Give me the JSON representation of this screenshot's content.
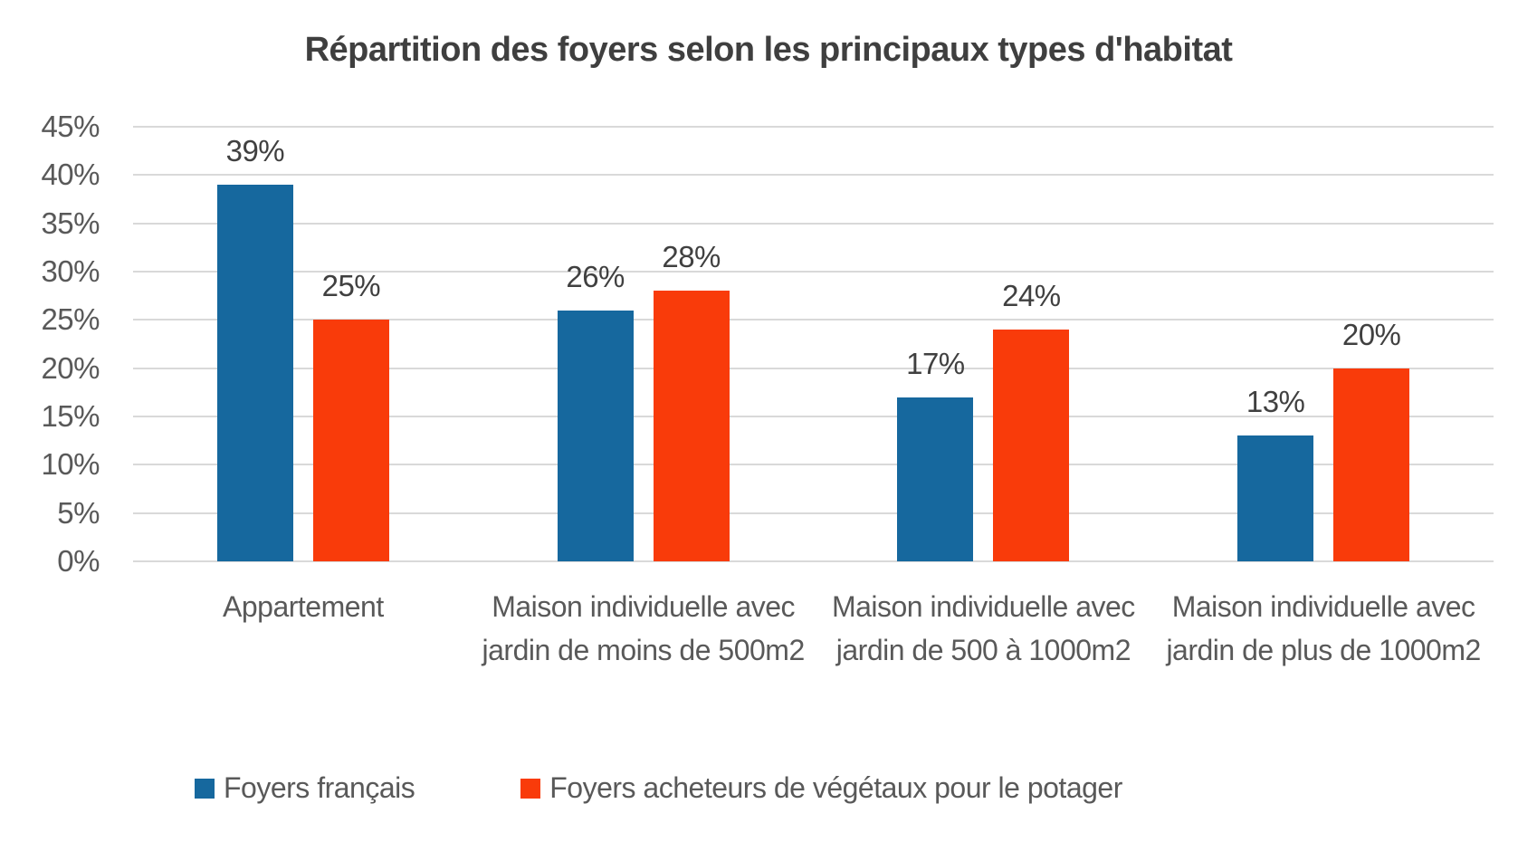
{
  "chart_data": {
    "type": "bar",
    "title": "Répartition des foyers selon les principaux types d'habitat",
    "categories": [
      "Appartement",
      "Maison individuelle avec jardin de moins de 500m2",
      "Maison individuelle avec jardin de 500 à 1000m2",
      "Maison individuelle avec jardin de plus de 1000m2"
    ],
    "series": [
      {
        "name": "Foyers français",
        "color": "#16689E",
        "values": [
          39,
          26,
          17,
          13
        ],
        "labels": [
          "39%",
          "26%",
          "17%",
          "13%"
        ]
      },
      {
        "name": "Foyers acheteurs de végétaux pour le potager",
        "color": "#F93B0A",
        "values": [
          25,
          28,
          24,
          20
        ],
        "labels": [
          "25%",
          "28%",
          "24%",
          "20%"
        ]
      }
    ],
    "y_axis": {
      "ticks": [
        "0%",
        "5%",
        "10%",
        "15%",
        "20%",
        "25%",
        "30%",
        "35%",
        "40%",
        "45%"
      ],
      "min": 0,
      "max": 45,
      "step": 5
    },
    "grid": true,
    "legend_position": "bottom",
    "colors": {
      "grid": "#D9D9D9",
      "axis_text": "#595959",
      "label_text": "#404040",
      "title_text": "#3F3F3F",
      "background": "#FFFFFF"
    }
  }
}
